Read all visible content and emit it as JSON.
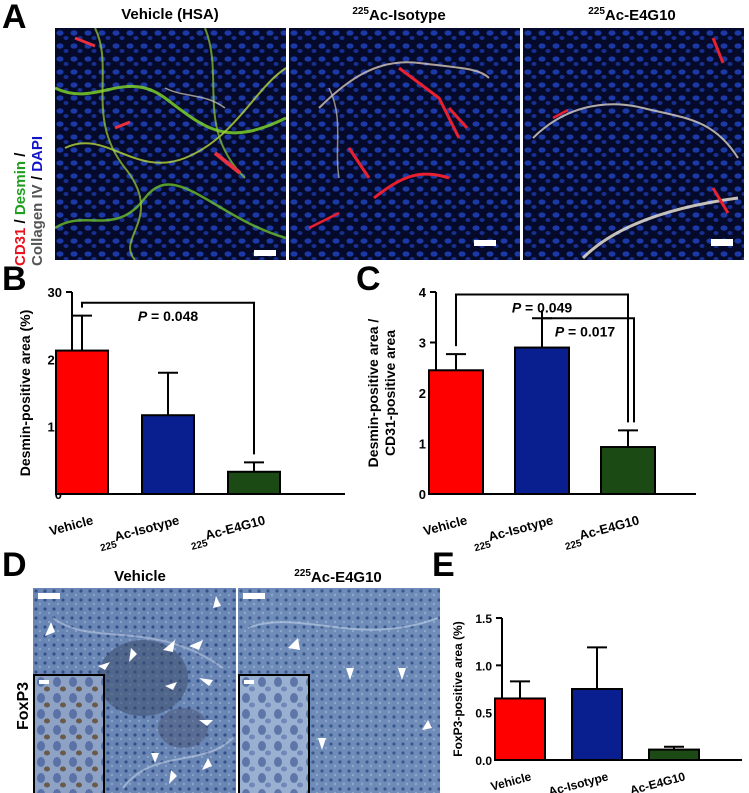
{
  "panels": {
    "A": {
      "letter": "A",
      "titles": [
        {
          "main": "Vehicle (HSA)",
          "sup": ""
        },
        {
          "main": "Ac-Isotype",
          "sup": "225"
        },
        {
          "main": "Ac-E4G10",
          "sup": "225"
        }
      ],
      "stain_label": {
        "part1": "CD31",
        "sep1": " / ",
        "part2": "Desmin",
        "sep2": " /",
        "line2a": "Collagen IV",
        "sep3": " / ",
        "line2b": "DAPI"
      },
      "colors": {
        "cd31": "#e8121f",
        "desmin": "#1f9e1f",
        "collagen": "#555555",
        "dapi": "#1414c8"
      }
    },
    "D": {
      "letter": "D",
      "titles": [
        {
          "main": "Vehicle",
          "sup": ""
        },
        {
          "main": "Ac-E4G10",
          "sup": "225"
        }
      ],
      "row_label": "FoxP3"
    }
  },
  "colors": {
    "vehicle": "#ff0000",
    "isotype": "#0a1f8f",
    "e4g10": "#1c4a14"
  },
  "chart_data": [
    {
      "id": "B",
      "type": "bar",
      "letter": "B",
      "categories": [
        {
          "main": "Vehicle",
          "sup": ""
        },
        {
          "main": "Ac-Isotype",
          "sup": "225"
        },
        {
          "main": "Ac-E4G10",
          "sup": "225"
        }
      ],
      "values": [
        21.3,
        11.7,
        3.3
      ],
      "errors": [
        5.2,
        6.3,
        1.4
      ],
      "ylabel": "Desmin-positive area (%)",
      "ylabel2": "",
      "ylim": [
        0,
        30
      ],
      "yticks": [
        "0",
        "10",
        "20",
        "30"
      ],
      "annotations": [
        {
          "text": "= 0.048",
          "p": "P",
          "from": 0,
          "to": 2
        }
      ]
    },
    {
      "id": "C",
      "type": "bar",
      "letter": "C",
      "categories": [
        {
          "main": "Vehicle",
          "sup": ""
        },
        {
          "main": "Ac-Isotype",
          "sup": "225"
        },
        {
          "main": "Ac-E4G10",
          "sup": "225"
        }
      ],
      "values": [
        2.45,
        2.9,
        0.93
      ],
      "errors": [
        0.32,
        0.58,
        0.33
      ],
      "ylabel": "Desmin-positive area /",
      "ylabel2": "CD31-positive area",
      "ylim": [
        0,
        4
      ],
      "yticks": [
        "0",
        "1",
        "2",
        "3",
        "4"
      ],
      "annotations": [
        {
          "text": "= 0.049",
          "p": "P",
          "from": 0,
          "to": 2
        },
        {
          "text": "= 0.017",
          "p": "P",
          "from": 1,
          "to": 2
        }
      ]
    },
    {
      "id": "E",
      "type": "bar",
      "letter": "E",
      "categories": [
        {
          "main": "Vehicle",
          "sup": ""
        },
        {
          "main": "Ac-Isotype",
          "sup": "225"
        },
        {
          "main": "Ac-E4G10",
          "sup": "225"
        }
      ],
      "values": [
        0.65,
        0.75,
        0.11
      ],
      "errors": [
        0.18,
        0.44,
        0.03
      ],
      "ylabel": "FoxP3-positive area (%)",
      "ylabel2": "",
      "ylim": [
        0,
        1.5
      ],
      "yticks": [
        "0.0",
        "0.5",
        "1.0",
        "1.5"
      ],
      "annotations": []
    }
  ]
}
